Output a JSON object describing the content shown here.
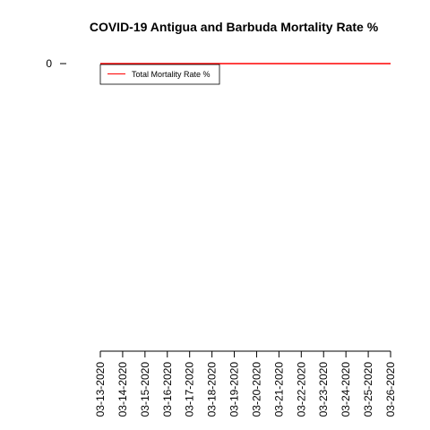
{
  "chart_data": {
    "type": "line",
    "title": "COVID-19 Antigua and Barbuda Mortality Rate %",
    "xlabel": "",
    "ylabel": "",
    "x": [
      "03-13-2020",
      "03-14-2020",
      "03-15-2020",
      "03-16-2020",
      "03-17-2020",
      "03-18-2020",
      "03-19-2020",
      "03-20-2020",
      "03-21-2020",
      "03-22-2020",
      "03-23-2020",
      "03-24-2020",
      "03-25-2020",
      "03-26-2020"
    ],
    "series": [
      {
        "name": "Total Mortality Rate %",
        "color": "#ff0000",
        "values": [
          0,
          0,
          0,
          0,
          0,
          0,
          0,
          0,
          0,
          0,
          0,
          0,
          0,
          0
        ]
      }
    ],
    "y_ticks": [
      0
    ],
    "y_tick_labels": [
      "0"
    ],
    "legend_position": "top-left",
    "grid": false
  }
}
